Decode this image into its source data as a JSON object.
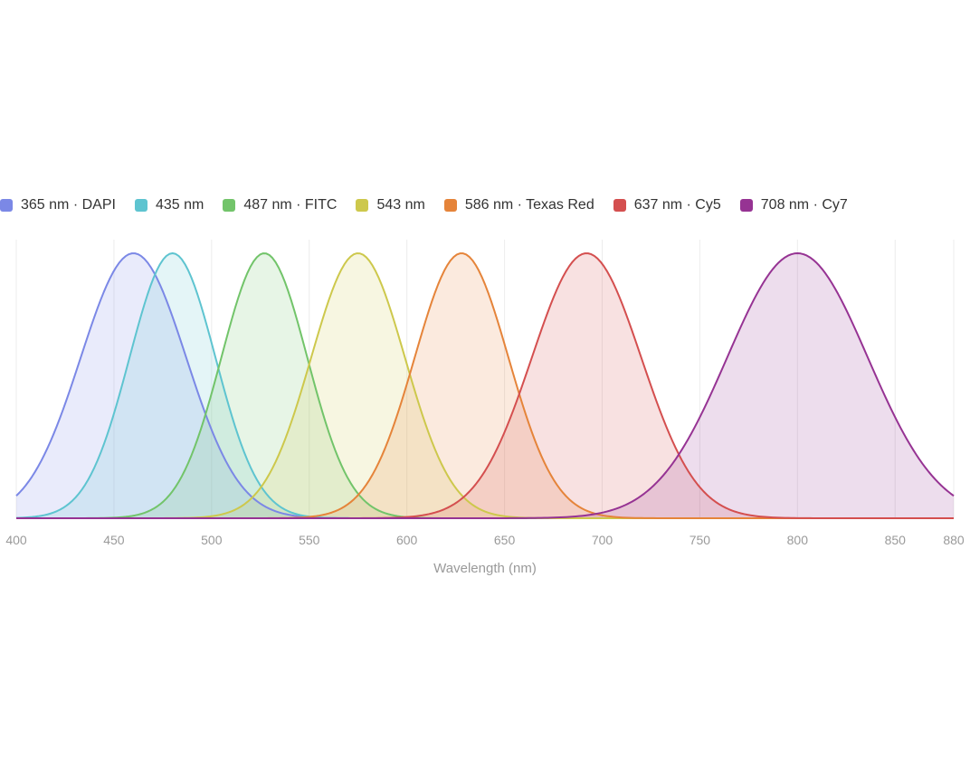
{
  "chart_data": {
    "type": "area",
    "xlabel": "Wavelength (nm)",
    "ylabel": "",
    "xlim": [
      400,
      880
    ],
    "ylim": [
      0,
      1
    ],
    "x_ticks": [
      400,
      450,
      500,
      550,
      600,
      650,
      700,
      750,
      800,
      850,
      880
    ],
    "grid": true,
    "legend_position": "top",
    "series": [
      {
        "name": "365 nm · DAPI",
        "color": "#7b88e6",
        "peak": 460,
        "sigma": 27,
        "amplitude": 1.0
      },
      {
        "name": "435 nm",
        "color": "#5ec4d0",
        "peak": 480,
        "sigma": 22,
        "amplitude": 1.0
      },
      {
        "name": "487 nm · FITC",
        "color": "#72c46a",
        "peak": 527,
        "sigma": 22,
        "amplitude": 1.0
      },
      {
        "name": "543 nm",
        "color": "#cdc84c",
        "peak": 575,
        "sigma": 24,
        "amplitude": 1.0
      },
      {
        "name": "586 nm · Texas Red",
        "color": "#e5843a",
        "peak": 628,
        "sigma": 24,
        "amplitude": 1.0
      },
      {
        "name": "637 nm · Cy5",
        "color": "#d44f4f",
        "peak": 692,
        "sigma": 28,
        "amplitude": 1.0
      },
      {
        "name": "708 nm · Cy7",
        "color": "#963393",
        "peak": 800,
        "sigma": 36,
        "amplitude": 1.0
      }
    ]
  }
}
